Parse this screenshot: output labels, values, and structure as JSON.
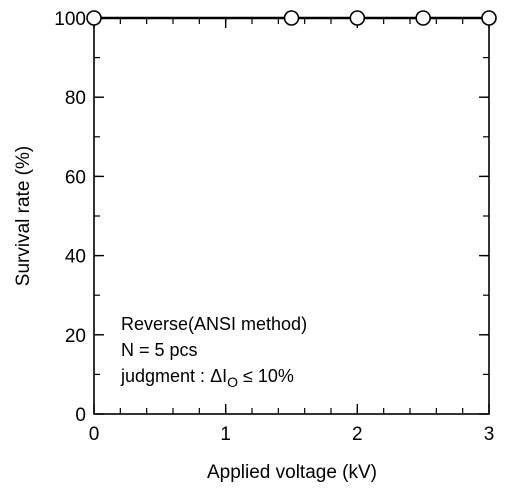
{
  "chart_data": {
    "type": "scatter",
    "title": "",
    "xlabel": "Applied voltage  (kV)",
    "ylabel": "Survival rate (%)",
    "xlim": [
      0,
      3
    ],
    "ylim": [
      0,
      100
    ],
    "x_ticks": [
      0,
      1,
      2,
      3
    ],
    "x_tick_labels": [
      "0",
      "1",
      "2",
      "3"
    ],
    "y_ticks": [
      0,
      20,
      40,
      60,
      80,
      100
    ],
    "y_tick_labels": [
      "0",
      "20",
      "40",
      "60",
      "80",
      "100"
    ],
    "x_minor_step": 0.2,
    "y_minor_step": 10,
    "grid": false,
    "marker": "open-circle",
    "series": [
      {
        "x": [
          0,
          1.5,
          2,
          2.5,
          3
        ],
        "y": [
          100,
          100,
          100,
          100,
          100
        ]
      }
    ],
    "annotations": {
      "line1": "Reverse(ANSI method)",
      "line2": "N = 5 pcs",
      "line3_prefix": "judgment : ",
      "line3_delta": "Δ",
      "line3_symbol": "I",
      "line3_subscript": "O",
      "line3_suffix": " ≤ 10%"
    }
  }
}
